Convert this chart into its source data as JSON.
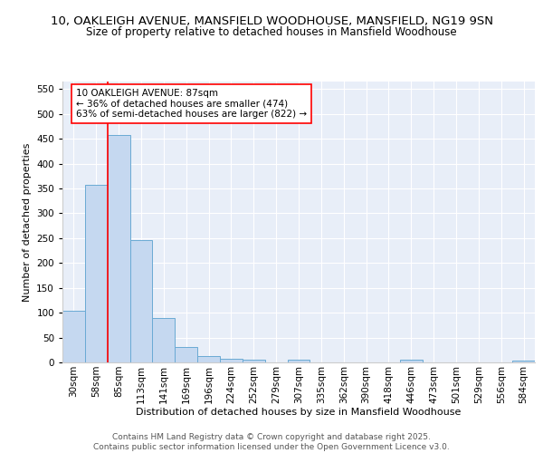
{
  "title1": "10, OAKLEIGH AVENUE, MANSFIELD WOODHOUSE, MANSFIELD, NG19 9SN",
  "title2": "Size of property relative to detached houses in Mansfield Woodhouse",
  "xlabel": "Distribution of detached houses by size in Mansfield Woodhouse",
  "ylabel": "Number of detached properties",
  "categories": [
    "30sqm",
    "58sqm",
    "85sqm",
    "113sqm",
    "141sqm",
    "169sqm",
    "196sqm",
    "224sqm",
    "252sqm",
    "279sqm",
    "307sqm",
    "335sqm",
    "362sqm",
    "390sqm",
    "418sqm",
    "446sqm",
    "473sqm",
    "501sqm",
    "529sqm",
    "556sqm",
    "584sqm"
  ],
  "values": [
    104,
    357,
    457,
    246,
    89,
    31,
    13,
    8,
    5,
    0,
    5,
    0,
    0,
    0,
    0,
    5,
    0,
    0,
    0,
    0,
    4
  ],
  "bar_color": "#c5d8f0",
  "bar_edge_color": "#6aaad4",
  "highlight_line_color": "red",
  "highlight_line_xidx": 2,
  "annotation_text": "10 OAKLEIGH AVENUE: 87sqm\n← 36% of detached houses are smaller (474)\n63% of semi-detached houses are larger (822) →",
  "annotation_box_color": "white",
  "annotation_box_edge_color": "red",
  "ylim": [
    0,
    565
  ],
  "yticks": [
    0,
    50,
    100,
    150,
    200,
    250,
    300,
    350,
    400,
    450,
    500,
    550
  ],
  "background_color": "#e8eef8",
  "footer_text": "Contains HM Land Registry data © Crown copyright and database right 2025.\nContains public sector information licensed under the Open Government Licence v3.0.",
  "title1_fontsize": 9.5,
  "title2_fontsize": 8.5,
  "xlabel_fontsize": 8,
  "ylabel_fontsize": 8,
  "tick_fontsize": 7.5,
  "annotation_fontsize": 7.5,
  "footer_fontsize": 6.5
}
